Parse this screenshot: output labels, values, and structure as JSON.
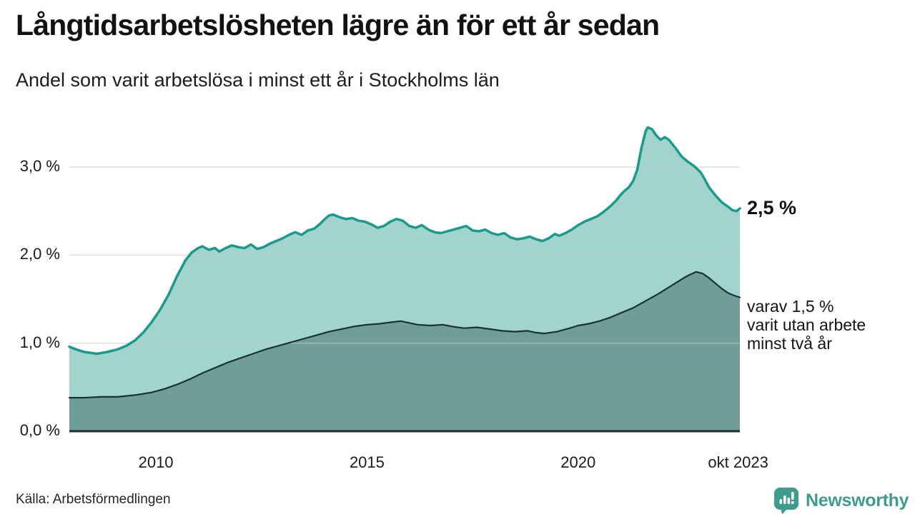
{
  "header": {
    "title": "Långtidsarbetslösheten lägre än för ett år sedan",
    "subtitle": "Andel som varit arbetslösa i minst ett år i Stockholms län"
  },
  "annotations": {
    "latest_value": "2,5 %",
    "two_year_lines": [
      "varav 1,5 %",
      "varit utan arbete",
      "minst två år"
    ]
  },
  "footer": {
    "source": "Källa: Arbetsförmedlingen",
    "brand": "Newsworthy"
  },
  "colors": {
    "long_term_line": "#1a9a8d",
    "long_term_fill": "#a2d4cd",
    "two_year_line": "#17333a",
    "two_year_fill": "#6f9e97",
    "gridline": "#c9c9c9",
    "axis_line": "#1e2f2f",
    "brand_teal": "#3e9b8e"
  },
  "chart_data": {
    "type": "area",
    "title": "Långtidsarbetslösheten lägre än för ett år sedan",
    "subtitle": "Andel som varit arbetslösa i minst ett år i Stockholms län",
    "unit": "%",
    "grid": true,
    "x_axis": {
      "range": [
        2007.95,
        2023.83
      ],
      "ticks": [
        {
          "label": "2010",
          "year": 2010
        },
        {
          "label": "2015",
          "year": 2015
        },
        {
          "label": "2020",
          "year": 2020
        },
        {
          "label": "okt 2023",
          "year": 2023.79
        }
      ]
    },
    "y_axis": {
      "range": [
        0,
        3.5
      ],
      "ticks": [
        {
          "label": "0,0 %",
          "value": 0
        },
        {
          "label": "1,0 %",
          "value": 1
        },
        {
          "label": "2,0 %",
          "value": 2
        },
        {
          "label": "3,0 %",
          "value": 3
        }
      ]
    },
    "series": [
      {
        "name": "Andel som varit arbetslösa i minst ett år",
        "latest_label": "2,5 %",
        "color": "#1a9a8d",
        "fill": "#a2d4cd",
        "stroke_width": 3.5,
        "x": [
          2007.95,
          2008.1,
          2008.3,
          2008.6,
          2008.85,
          2009.1,
          2009.3,
          2009.5,
          2009.7,
          2009.9,
          2010.1,
          2010.3,
          2010.5,
          2010.7,
          2010.85,
          2011.0,
          2011.1,
          2011.25,
          2011.4,
          2011.5,
          2011.65,
          2011.8,
          2011.95,
          2012.1,
          2012.25,
          2012.4,
          2012.55,
          2012.7,
          2012.85,
          2013.0,
          2013.15,
          2013.3,
          2013.45,
          2013.6,
          2013.75,
          2013.9,
          2014.0,
          2014.1,
          2014.2,
          2014.35,
          2014.5,
          2014.65,
          2014.8,
          2014.95,
          2015.1,
          2015.25,
          2015.4,
          2015.55,
          2015.7,
          2015.85,
          2016.0,
          2016.15,
          2016.3,
          2016.45,
          2016.6,
          2016.75,
          2016.9,
          2017.05,
          2017.2,
          2017.35,
          2017.5,
          2017.65,
          2017.8,
          2017.95,
          2018.1,
          2018.25,
          2018.4,
          2018.55,
          2018.7,
          2018.85,
          2019.0,
          2019.15,
          2019.3,
          2019.45,
          2019.55,
          2019.7,
          2019.85,
          2020.0,
          2020.15,
          2020.3,
          2020.45,
          2020.6,
          2020.75,
          2020.9,
          2021.0,
          2021.1,
          2021.2,
          2021.3,
          2021.4,
          2021.5,
          2021.6,
          2021.65,
          2021.75,
          2021.85,
          2021.95,
          2022.05,
          2022.15,
          2022.3,
          2022.45,
          2022.6,
          2022.75,
          2022.9,
          2023.0,
          2023.1,
          2023.25,
          2023.4,
          2023.55,
          2023.65,
          2023.75,
          2023.83
        ],
        "values": [
          0.96,
          0.93,
          0.9,
          0.88,
          0.9,
          0.93,
          0.97,
          1.03,
          1.12,
          1.24,
          1.38,
          1.55,
          1.76,
          1.94,
          2.03,
          2.08,
          2.1,
          2.06,
          2.08,
          2.04,
          2.08,
          2.11,
          2.09,
          2.08,
          2.12,
          2.07,
          2.09,
          2.13,
          2.16,
          2.19,
          2.23,
          2.26,
          2.23,
          2.28,
          2.3,
          2.36,
          2.41,
          2.45,
          2.46,
          2.43,
          2.41,
          2.42,
          2.39,
          2.38,
          2.35,
          2.31,
          2.33,
          2.38,
          2.41,
          2.39,
          2.33,
          2.31,
          2.34,
          2.29,
          2.26,
          2.25,
          2.27,
          2.29,
          2.31,
          2.33,
          2.28,
          2.27,
          2.29,
          2.25,
          2.23,
          2.25,
          2.2,
          2.18,
          2.19,
          2.21,
          2.18,
          2.16,
          2.19,
          2.24,
          2.22,
          2.25,
          2.29,
          2.34,
          2.38,
          2.41,
          2.44,
          2.49,
          2.55,
          2.62,
          2.68,
          2.73,
          2.77,
          2.84,
          2.97,
          3.22,
          3.41,
          3.45,
          3.43,
          3.36,
          3.31,
          3.34,
          3.31,
          3.22,
          3.12,
          3.06,
          3.01,
          2.94,
          2.86,
          2.77,
          2.68,
          2.6,
          2.55,
          2.51,
          2.5,
          2.53
        ]
      },
      {
        "name": "varav utan arbete minst två år",
        "latest_label": "varav 1,5 % varit utan arbete minst två år",
        "color": "#17333a",
        "fill": "#6f9e97",
        "stroke_width": 2.2,
        "x": [
          2007.95,
          2008.3,
          2008.7,
          2009.1,
          2009.5,
          2009.9,
          2010.2,
          2010.5,
          2010.8,
          2011.1,
          2011.4,
          2011.7,
          2012.0,
          2012.3,
          2012.6,
          2012.9,
          2013.2,
          2013.5,
          2013.8,
          2014.1,
          2014.4,
          2014.7,
          2015.0,
          2015.3,
          2015.6,
          2015.8,
          2016.0,
          2016.2,
          2016.5,
          2016.8,
          2017.0,
          2017.3,
          2017.6,
          2017.9,
          2018.2,
          2018.5,
          2018.8,
          2019.0,
          2019.2,
          2019.5,
          2019.8,
          2020.0,
          2020.25,
          2020.5,
          2020.75,
          2021.0,
          2021.3,
          2021.6,
          2021.9,
          2022.1,
          2022.3,
          2022.5,
          2022.65,
          2022.8,
          2022.95,
          2023.1,
          2023.25,
          2023.4,
          2023.55,
          2023.7,
          2023.83
        ],
        "values": [
          0.38,
          0.38,
          0.39,
          0.39,
          0.41,
          0.44,
          0.48,
          0.53,
          0.59,
          0.66,
          0.72,
          0.78,
          0.83,
          0.88,
          0.93,
          0.97,
          1.01,
          1.05,
          1.09,
          1.13,
          1.16,
          1.19,
          1.21,
          1.22,
          1.24,
          1.25,
          1.23,
          1.21,
          1.2,
          1.21,
          1.19,
          1.17,
          1.18,
          1.16,
          1.14,
          1.13,
          1.14,
          1.12,
          1.11,
          1.13,
          1.17,
          1.2,
          1.22,
          1.25,
          1.29,
          1.34,
          1.4,
          1.48,
          1.56,
          1.62,
          1.68,
          1.74,
          1.78,
          1.81,
          1.79,
          1.74,
          1.68,
          1.62,
          1.57,
          1.54,
          1.52
        ]
      }
    ]
  }
}
